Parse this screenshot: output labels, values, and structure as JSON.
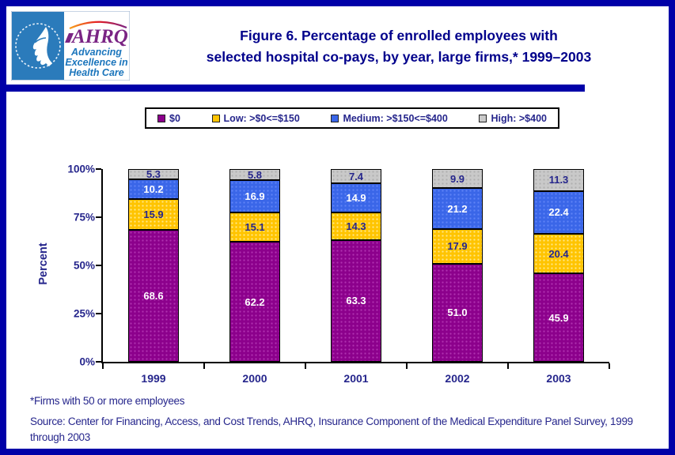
{
  "header": {
    "title_line1": "Figure 6. Percentage of enrolled employees with",
    "title_line2": "selected hospital co-pays, by year, large firms,* 1999–2003",
    "logo": {
      "ahrq_text": "AHRQ",
      "tagline_line1": "Advancing",
      "tagline_line2": "Excellence in",
      "tagline_line3": "Health Care"
    }
  },
  "chart_data": {
    "type": "bar",
    "stacked": true,
    "title": "Figure 6. Percentage of enrolled employees with selected hospital co-pays, by year, large firms,* 1999–2003",
    "categories": [
      "1999",
      "2000",
      "2001",
      "2002",
      "2003"
    ],
    "series": [
      {
        "name": "$0",
        "color": "#8C008C",
        "dot_color": "rgba(205,90,205,0.55)",
        "label_color": "#FFFFFF",
        "values": [
          68.6,
          62.2,
          63.3,
          51.0,
          45.9
        ]
      },
      {
        "name": "Low: >$0<=$150",
        "color": "#FFC400",
        "dot_color": "rgba(255,235,150,0.9)",
        "label_color": "#26268C",
        "values": [
          15.9,
          15.1,
          14.3,
          17.9,
          20.4
        ]
      },
      {
        "name": "Medium: >$150<=$400",
        "color": "#3A66E8",
        "dot_color": "rgba(120,150,255,0.6)",
        "label_color": "#FFFFFF",
        "values": [
          10.2,
          16.9,
          14.9,
          21.2,
          22.4
        ]
      },
      {
        "name": "High: >$400",
        "color": "#C9C9C9",
        "dot_color": "rgba(150,150,150,0.5)",
        "label_color": "#26268C",
        "values": [
          5.3,
          5.8,
          7.4,
          9.9,
          11.3
        ]
      }
    ],
    "xlabel": "",
    "ylabel": "Percent",
    "yticks": [
      "0%",
      "25%",
      "50%",
      "75%",
      "100%"
    ],
    "ylim": [
      0,
      100
    ],
    "grid": false,
    "legend_position": "top"
  },
  "footnotes": {
    "note": "*Firms with 50 or more employees",
    "source": "Source: Center for Financing, Access, and Cost Trends, AHRQ, Insurance Component of the Medical Expenditure Panel Survey, 1999 through 2003"
  },
  "colors": {
    "frame_border": "#0000A8",
    "title_text": "#00008B",
    "label_text": "#26268C",
    "axis": "#000000",
    "hhs_logo_blue": "#2B7BBB",
    "ahrq_purple": "#7A2484"
  }
}
